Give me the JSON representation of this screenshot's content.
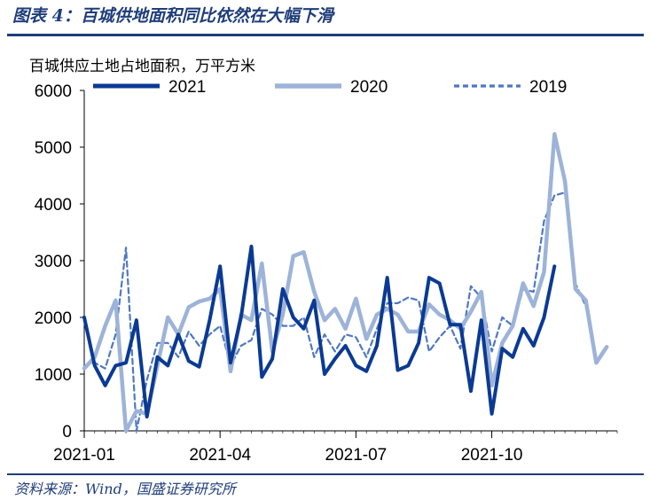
{
  "figure": {
    "title": "图表 4：百城供地面积同比依然在大幅下滑",
    "source": "资料来源：Wind，国盛证券研究所"
  },
  "colors": {
    "s2021": "#0a3a94",
    "s2020": "#9db3d8",
    "s2019": "#4f78c2",
    "rule": "#1f3d7a"
  },
  "chart_data": {
    "type": "line",
    "ylabel": "百城供应土地占地面积，万平方米",
    "ylim": [
      0,
      6000
    ],
    "yticks": [
      "0",
      "1000",
      "2000",
      "3000",
      "4000",
      "5000",
      "6000"
    ],
    "x_ticks": [
      {
        "label": "2021-01",
        "week": 0
      },
      {
        "label": "2021-04",
        "week": 13
      },
      {
        "label": "2021-07",
        "week": 26
      },
      {
        "label": "2021-10",
        "week": 39
      }
    ],
    "legend_position": "top",
    "series": [
      {
        "name": "2021",
        "style": "solid-thick",
        "values": [
          2000,
          1150,
          800,
          1150,
          1200,
          1950,
          250,
          1300,
          1150,
          1700,
          1230,
          1130,
          1950,
          2900,
          1200,
          2000,
          3250,
          950,
          1270,
          2500,
          2000,
          1800,
          2300,
          1000,
          1270,
          1500,
          1150,
          1050,
          1500,
          2700,
          1070,
          1150,
          1550,
          2700,
          2600,
          1870,
          1870,
          700,
          1950,
          300,
          1450,
          1300,
          1800,
          1500,
          2000,
          2900
        ]
      },
      {
        "name": "2020",
        "style": "solid-light",
        "values": [
          1100,
          1300,
          1850,
          2300,
          0,
          350,
          300,
          1150,
          2000,
          1700,
          2180,
          2280,
          2330,
          2500,
          1050,
          2050,
          1950,
          2950,
          1400,
          2050,
          3080,
          3150,
          2450,
          1950,
          2150,
          1800,
          2330,
          1620,
          2050,
          2150,
          2050,
          1750,
          1750,
          2230,
          2050,
          1950,
          1800,
          2100,
          2450,
          800,
          1550,
          1850,
          2600,
          2200,
          2800,
          5230,
          4400,
          2500,
          2300,
          1200,
          1480
        ]
      },
      {
        "name": "2019",
        "style": "dashed",
        "values": [
          1150,
          1200,
          1100,
          1700,
          3230,
          0,
          900,
          1550,
          1550,
          1300,
          1750,
          1500,
          1700,
          1850,
          1150,
          1500,
          1600,
          2150,
          2050,
          1850,
          1850,
          2000,
          1300,
          1700,
          1400,
          1700,
          1650,
          1300,
          1800,
          2250,
          2250,
          2350,
          2300,
          1400,
          1650,
          1850,
          1450,
          2550,
          2350,
          1400,
          2000,
          1850,
          2500,
          2450,
          3700,
          4150,
          4200,
          2600,
          2200,
          1250
        ]
      }
    ]
  }
}
